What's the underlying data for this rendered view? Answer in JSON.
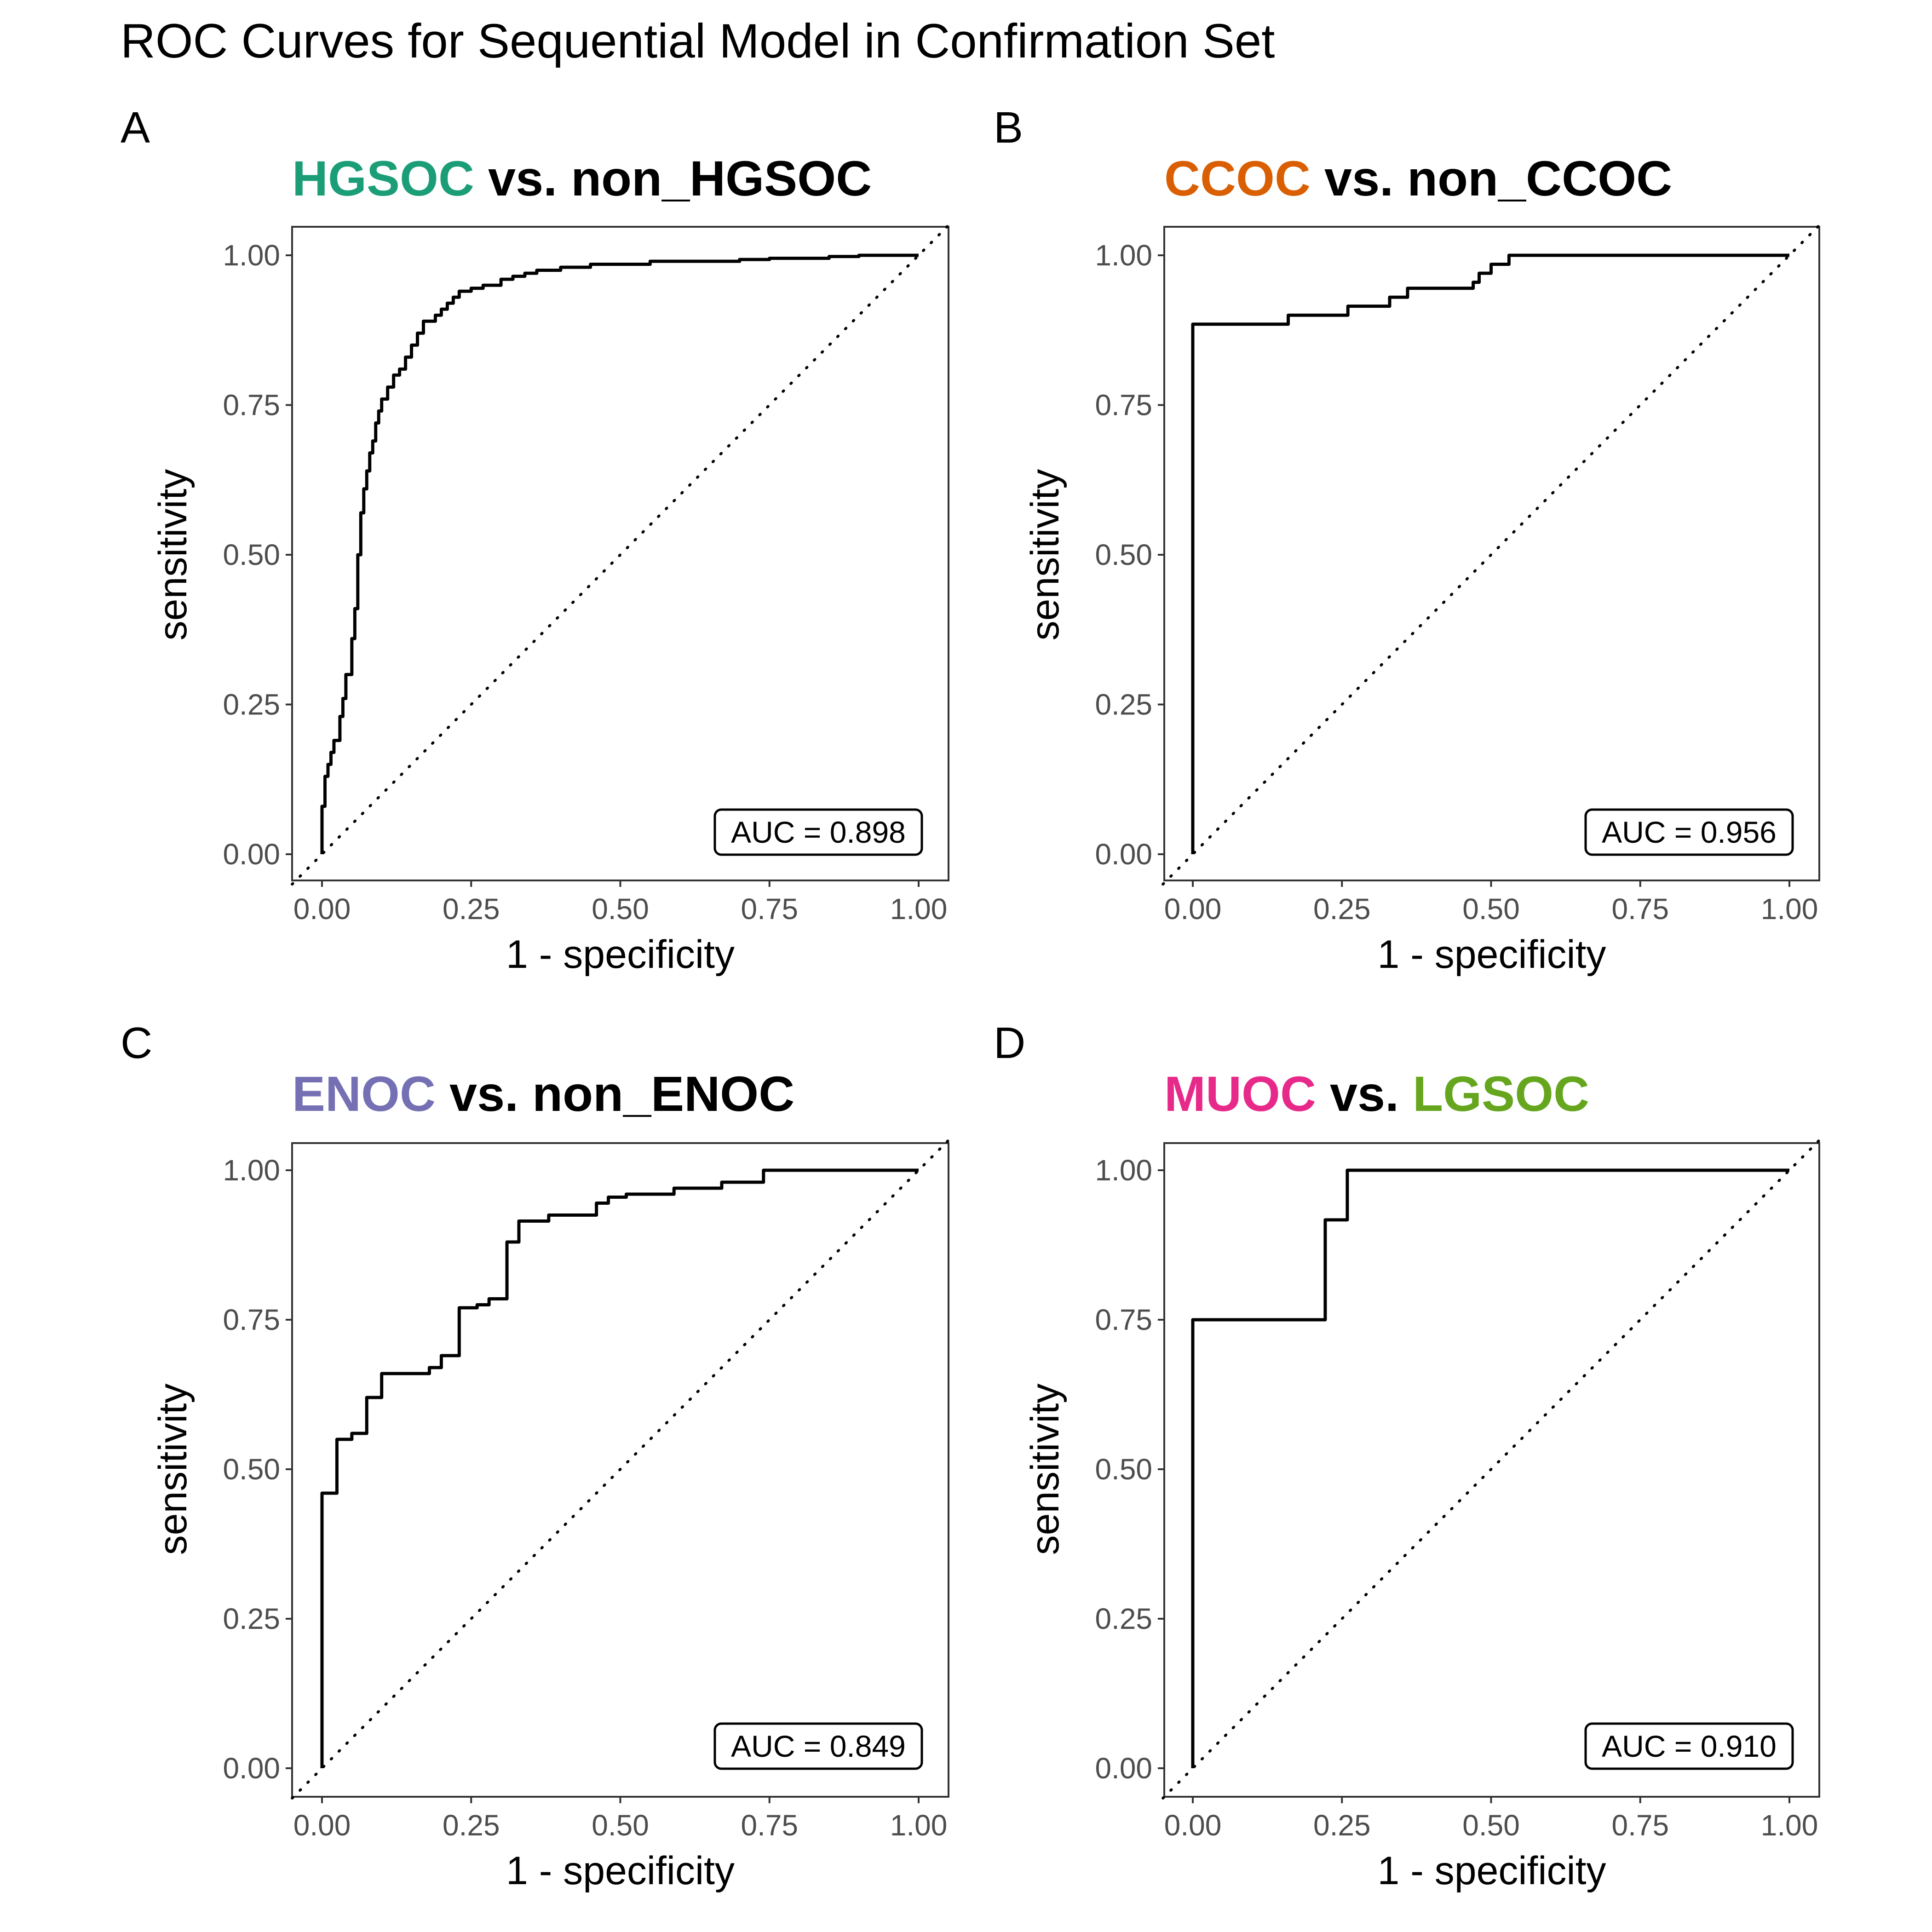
{
  "title": "ROC Curves for Sequential Model in Confirmation Set",
  "colors": {
    "HGSOC": "#1B9E77",
    "CCOC": "#D95F02",
    "ENOC": "#7570B3",
    "MUOC": "#E7298A",
    "LGSOC": "#66A61E",
    "curve": "#000000",
    "reference_line": "#000000"
  },
  "chart_data": [
    {
      "type": "line",
      "tag": "A",
      "title_parts": [
        {
          "text": "HGSOC",
          "color": "#1B9E77"
        },
        {
          "text": " vs. non_HGSOC",
          "color": "#000000"
        }
      ],
      "xlabel": "1 - specificity",
      "ylabel": "sensitivity",
      "xlim": [
        0,
        1
      ],
      "ylim": [
        0,
        1
      ],
      "xticks": [
        "0.00",
        "0.25",
        "0.50",
        "0.75",
        "1.00"
      ],
      "yticks": [
        "0.00",
        "0.25",
        "0.50",
        "0.75",
        "1.00"
      ],
      "grid": false,
      "reference_line": "diagonal dotted y = x",
      "annotation": "AUC = 0.898",
      "annotation_position": "bottom-right",
      "series": [
        {
          "name": "ROC",
          "step": true,
          "x": [
            0,
            0.005,
            0.01,
            0.015,
            0.02,
            0.025,
            0.03,
            0.035,
            0.04,
            0.045,
            0.05,
            0.055,
            0.06,
            0.065,
            0.07,
            0.075,
            0.08,
            0.085,
            0.09,
            0.095,
            0.1,
            0.11,
            0.12,
            0.13,
            0.14,
            0.15,
            0.16,
            0.17,
            0.18,
            0.19,
            0.2,
            0.21,
            0.22,
            0.23,
            0.24,
            0.25,
            0.27,
            0.3,
            0.32,
            0.34,
            0.36,
            0.4,
            0.45,
            0.5,
            0.55,
            0.6,
            0.65,
            0.7,
            0.75,
            0.8,
            0.85,
            0.9,
            0.95,
            1.0
          ],
          "y": [
            0,
            0.08,
            0.13,
            0.15,
            0.17,
            0.19,
            0.19,
            0.23,
            0.26,
            0.3,
            0.3,
            0.36,
            0.41,
            0.5,
            0.57,
            0.61,
            0.64,
            0.67,
            0.69,
            0.72,
            0.74,
            0.76,
            0.78,
            0.8,
            0.81,
            0.83,
            0.85,
            0.87,
            0.89,
            0.89,
            0.9,
            0.91,
            0.92,
            0.93,
            0.94,
            0.94,
            0.945,
            0.95,
            0.96,
            0.965,
            0.97,
            0.975,
            0.98,
            0.985,
            0.985,
            0.99,
            0.99,
            0.99,
            0.993,
            0.995,
            0.995,
            0.998,
            1.0,
            1.0
          ]
        }
      ]
    },
    {
      "type": "line",
      "tag": "B",
      "title_parts": [
        {
          "text": "CCOC",
          "color": "#D95F02"
        },
        {
          "text": " vs. non_CCOC",
          "color": "#000000"
        }
      ],
      "xlabel": "1 - specificity",
      "ylabel": "sensitivity",
      "xlim": [
        0,
        1
      ],
      "ylim": [
        0,
        1
      ],
      "xticks": [
        "0.00",
        "0.25",
        "0.50",
        "0.75",
        "1.00"
      ],
      "yticks": [
        "0.00",
        "0.25",
        "0.50",
        "0.75",
        "1.00"
      ],
      "grid": false,
      "reference_line": "diagonal dotted y = x",
      "annotation": "AUC = 0.956",
      "annotation_position": "bottom-right",
      "series": [
        {
          "name": "ROC",
          "step": true,
          "x": [
            0,
            0,
            0.008,
            0.16,
            0.26,
            0.33,
            0.36,
            0.47,
            0.48,
            0.5,
            0.53,
            0.545,
            1.0
          ],
          "y": [
            0,
            0.845,
            0.885,
            0.885,
            0.9,
            0.915,
            0.93,
            0.945,
            0.955,
            0.97,
            0.985,
            1.0,
            1.0
          ]
        }
      ]
    },
    {
      "type": "line",
      "tag": "C",
      "title_parts": [
        {
          "text": "ENOC",
          "color": "#7570B3"
        },
        {
          "text": " vs. non_ENOC",
          "color": "#000000"
        }
      ],
      "xlabel": "1 - specificity",
      "ylabel": "sensitivity",
      "xlim": [
        0,
        1
      ],
      "ylim": [
        0,
        1
      ],
      "xticks": [
        "0.00",
        "0.25",
        "0.50",
        "0.75",
        "1.00"
      ],
      "yticks": [
        "0.00",
        "0.25",
        "0.50",
        "0.75",
        "1.00"
      ],
      "grid": false,
      "reference_line": "diagonal dotted y = x",
      "annotation": "AUC = 0.849",
      "annotation_position": "bottom-right",
      "series": [
        {
          "name": "ROC",
          "step": true,
          "x": [
            0,
            0,
            0.025,
            0.05,
            0.075,
            0.1,
            0.18,
            0.2,
            0.23,
            0.26,
            0.28,
            0.31,
            0.33,
            0.38,
            0.46,
            0.48,
            0.51,
            0.59,
            0.67,
            0.74,
            0.92,
            1.0
          ],
          "y": [
            0,
            0.41,
            0.46,
            0.55,
            0.56,
            0.62,
            0.66,
            0.67,
            0.69,
            0.77,
            0.775,
            0.785,
            0.88,
            0.915,
            0.925,
            0.945,
            0.955,
            0.96,
            0.97,
            0.98,
            1.0,
            1.0
          ]
        }
      ]
    },
    {
      "type": "line",
      "tag": "D",
      "title_parts": [
        {
          "text": "MUOC",
          "color": "#E7298A"
        },
        {
          "text": " vs. ",
          "color": "#000000"
        },
        {
          "text": "LGSOC",
          "color": "#66A61E"
        }
      ],
      "xlabel": "1 - specificity",
      "ylabel": "sensitivity",
      "xlim": [
        0,
        1
      ],
      "ylim": [
        0,
        1
      ],
      "xticks": [
        "0.00",
        "0.25",
        "0.50",
        "0.75",
        "1.00"
      ],
      "yticks": [
        "0.00",
        "0.25",
        "0.50",
        "0.75",
        "1.00"
      ],
      "grid": false,
      "reference_line": "diagonal dotted y = x",
      "annotation": "AUC = 0.910",
      "annotation_position": "bottom-right",
      "series": [
        {
          "name": "ROC",
          "step": true,
          "x": [
            0,
            0,
            0.222,
            0.259,
            0.333,
            1.0
          ],
          "y": [
            0,
            0.667,
            0.75,
            0.917,
            1.0,
            1.0
          ]
        }
      ]
    }
  ]
}
